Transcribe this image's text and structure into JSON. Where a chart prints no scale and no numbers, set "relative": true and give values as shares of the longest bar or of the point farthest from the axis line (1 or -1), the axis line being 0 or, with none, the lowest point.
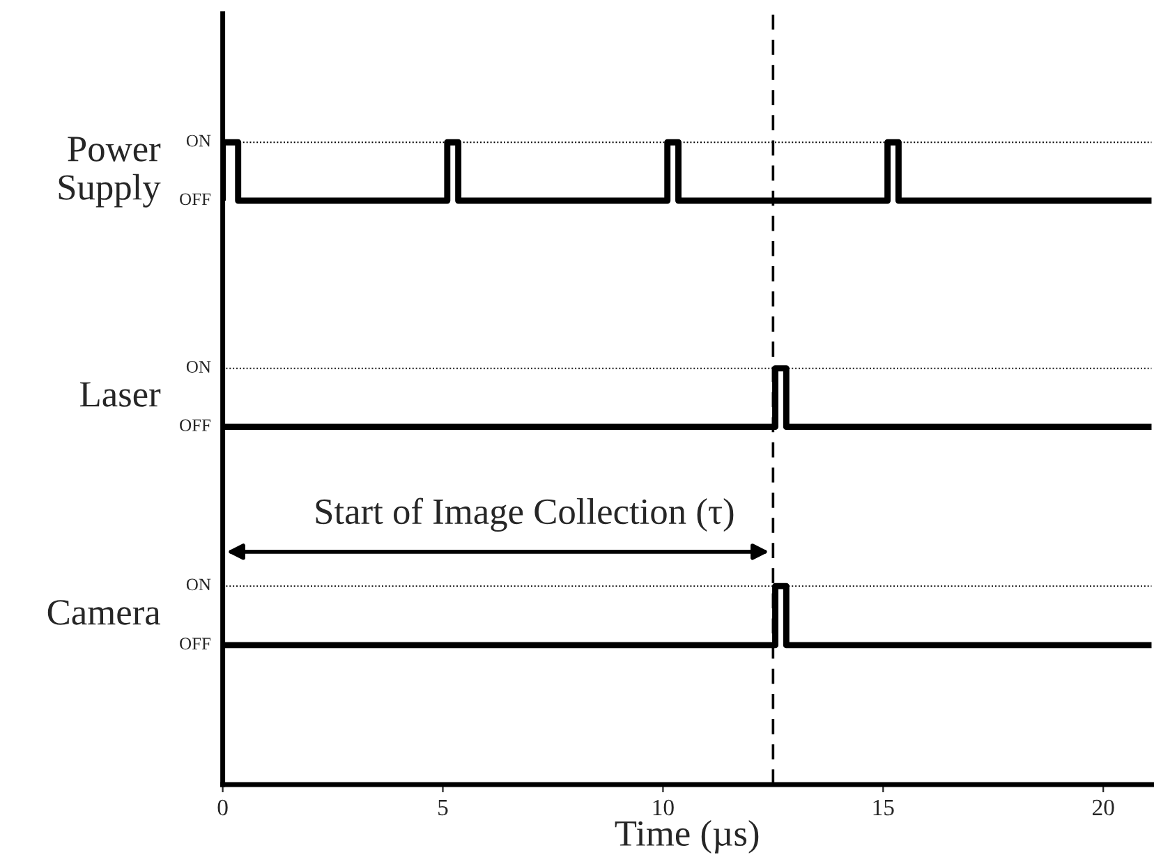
{
  "chart_data": {
    "type": "step",
    "xlabel": "Time (µs)",
    "relative": true,
    "xlim": [
      0,
      21.1
    ],
    "xticks": [
      0,
      5,
      10,
      15,
      20
    ],
    "series": [
      {
        "name": "Power\nSupply",
        "color": "#000000",
        "x": [
          0,
          0,
          0.35,
          5.1,
          5.35,
          10.1,
          10.35,
          15.1,
          15.35,
          21.1
        ],
        "values": [
          0.909,
          1,
          0.909,
          1,
          0.909,
          1,
          0.909,
          1,
          0.909,
          0.909
        ]
      },
      {
        "name": "Laser",
        "color": "#000000",
        "x": [
          0,
          12.55,
          12.8,
          21.1
        ],
        "values": [
          0.557,
          0.648,
          0.557,
          0.557
        ]
      },
      {
        "name": "Camera",
        "color": "#000000",
        "x": [
          0,
          12.55,
          12.8,
          21.1
        ],
        "values": [
          0.217,
          0.309,
          0.217,
          0.217
        ]
      }
    ],
    "ref_lines": [
      {
        "axis": "y",
        "value": 1,
        "line_style": "dotted",
        "label": "ON"
      },
      {
        "axis": "y",
        "value": 0.648,
        "line_style": "dotted",
        "label": "ON"
      },
      {
        "axis": "y",
        "value": 0.309,
        "line_style": "dotted",
        "label": "ON"
      },
      {
        "axis": "x",
        "value": 12.5,
        "line_style": "dashed"
      }
    ],
    "annotations": [
      "OFF",
      "OFF",
      "OFF",
      "Start of Image Collection (τ)"
    ],
    "grid": false,
    "legend": false
  }
}
